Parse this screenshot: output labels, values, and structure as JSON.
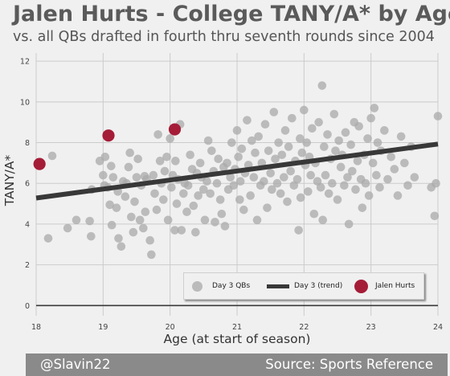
{
  "header": {
    "title": "Jalen Hurts - College TANY/A* by Age",
    "subtitle": "vs. all QBs drafted in fourth thru seventh rounds since 2004"
  },
  "footer": {
    "handle": "@Slavin22",
    "source": "Source: Sports Reference"
  },
  "legend": {
    "day3": "Day 3 QBs",
    "trend": "Day 3 (trend)",
    "hurts": "Jalen Hurts"
  },
  "colors": {
    "background": "#f0f0f0",
    "grid": "#cbcbcb",
    "scatter": "#a9a9a9",
    "trend": "#383838",
    "highlight": "#a51c37",
    "footer": "#8a8a8a"
  },
  "chart_data": {
    "type": "scatter",
    "xlabel": "Age (at start of season)",
    "ylabel": "TANY/A*",
    "xlim": [
      18,
      24
    ],
    "ylim": [
      -0.5,
      12.4
    ],
    "xticks": [
      18,
      19,
      20,
      21,
      22,
      23,
      24
    ],
    "yticks": [
      0,
      2,
      4,
      6,
      8,
      10,
      12
    ],
    "grid": true,
    "legend_position": "bottom-right",
    "series": [
      {
        "name": "Day 3 QBs",
        "color": "#a9a9a9",
        "points": [
          [
            18.18,
            3.3
          ],
          [
            18.24,
            7.35
          ],
          [
            18.47,
            3.8
          ],
          [
            18.6,
            4.2
          ],
          [
            18.8,
            4.15
          ],
          [
            18.82,
            3.4
          ],
          [
            18.83,
            5.7
          ],
          [
            18.95,
            7.1
          ],
          [
            19.0,
            6.4
          ],
          [
            19.02,
            5.9
          ],
          [
            19.03,
            7.3
          ],
          [
            19.07,
            5.8
          ],
          [
            19.1,
            4.95
          ],
          [
            19.12,
            6.85
          ],
          [
            19.13,
            3.95
          ],
          [
            19.15,
            6.3
          ],
          [
            19.2,
            4.8
          ],
          [
            19.22,
            5.6
          ],
          [
            19.23,
            3.3
          ],
          [
            19.27,
            2.9
          ],
          [
            19.3,
            6.1
          ],
          [
            19.33,
            5.35
          ],
          [
            19.35,
            6.0
          ],
          [
            19.38,
            6.8
          ],
          [
            19.4,
            7.5
          ],
          [
            19.42,
            4.35
          ],
          [
            19.45,
            3.6
          ],
          [
            19.47,
            5.1
          ],
          [
            19.5,
            6.3
          ],
          [
            19.52,
            7.2
          ],
          [
            19.55,
            4.2
          ],
          [
            19.57,
            5.9
          ],
          [
            19.6,
            3.8
          ],
          [
            19.62,
            6.35
          ],
          [
            19.63,
            4.6
          ],
          [
            19.65,
            6.2
          ],
          [
            19.7,
            3.2
          ],
          [
            19.72,
            2.5
          ],
          [
            19.75,
            6.4
          ],
          [
            19.77,
            5.5
          ],
          [
            19.8,
            4.7
          ],
          [
            19.82,
            8.4
          ],
          [
            19.85,
            7.1
          ],
          [
            19.87,
            6.0
          ],
          [
            19.9,
            5.2
          ],
          [
            19.92,
            6.6
          ],
          [
            19.95,
            7.3
          ],
          [
            19.97,
            4.2
          ],
          [
            20.0,
            8.2
          ],
          [
            20.02,
            5.8
          ],
          [
            20.04,
            6.4
          ],
          [
            20.07,
            3.7
          ],
          [
            20.08,
            7.1
          ],
          [
            20.1,
            5.0
          ],
          [
            20.12,
            6.2
          ],
          [
            20.15,
            8.9
          ],
          [
            20.17,
            3.7
          ],
          [
            20.2,
            5.5
          ],
          [
            20.22,
            6.0
          ],
          [
            20.25,
            4.6
          ],
          [
            20.27,
            5.9
          ],
          [
            20.3,
            7.4
          ],
          [
            20.33,
            6.7
          ],
          [
            20.35,
            4.9
          ],
          [
            20.38,
            3.6
          ],
          [
            20.4,
            6.5
          ],
          [
            20.42,
            5.4
          ],
          [
            20.45,
            7.0
          ],
          [
            20.47,
            6.3
          ],
          [
            20.5,
            5.7
          ],
          [
            20.52,
            4.2
          ],
          [
            20.55,
            6.1
          ],
          [
            20.57,
            8.1
          ],
          [
            20.6,
            5.5
          ],
          [
            20.62,
            7.6
          ],
          [
            20.65,
            6.6
          ],
          [
            20.67,
            4.1
          ],
          [
            20.7,
            6.0
          ],
          [
            20.72,
            7.2
          ],
          [
            20.75,
            5.2
          ],
          [
            20.77,
            4.5
          ],
          [
            20.8,
            6.8
          ],
          [
            20.82,
            3.9
          ],
          [
            20.85,
            7.0
          ],
          [
            20.87,
            5.7
          ],
          [
            20.9,
            6.3
          ],
          [
            20.92,
            8.0
          ],
          [
            20.95,
            5.9
          ],
          [
            20.97,
            6.7
          ],
          [
            21.0,
            8.6
          ],
          [
            21.02,
            7.3
          ],
          [
            21.04,
            5.2
          ],
          [
            21.05,
            6.1
          ],
          [
            21.07,
            7.7
          ],
          [
            21.1,
            4.7
          ],
          [
            21.12,
            6.5
          ],
          [
            21.15,
            9.1
          ],
          [
            21.17,
            6.9
          ],
          [
            21.2,
            5.4
          ],
          [
            21.22,
            8.1
          ],
          [
            21.25,
            6.3
          ],
          [
            21.27,
            7.5
          ],
          [
            21.3,
            4.2
          ],
          [
            21.32,
            8.3
          ],
          [
            21.35,
            5.9
          ],
          [
            21.37,
            7.0
          ],
          [
            21.4,
            6.1
          ],
          [
            21.42,
            8.9
          ],
          [
            21.45,
            4.8
          ],
          [
            21.47,
            7.6
          ],
          [
            21.5,
            6.5
          ],
          [
            21.52,
            5.7
          ],
          [
            21.55,
            9.5
          ],
          [
            21.57,
            7.2
          ],
          [
            21.6,
            6.0
          ],
          [
            21.62,
            8.0
          ],
          [
            21.65,
            5.5
          ],
          [
            21.67,
            7.4
          ],
          [
            21.7,
            6.3
          ],
          [
            21.72,
            8.6
          ],
          [
            21.75,
            5.1
          ],
          [
            21.77,
            7.8
          ],
          [
            21.8,
            6.6
          ],
          [
            21.82,
            9.2
          ],
          [
            21.85,
            5.9
          ],
          [
            21.87,
            7.1
          ],
          [
            21.9,
            6.2
          ],
          [
            21.92,
            3.7
          ],
          [
            21.94,
            8.2
          ],
          [
            21.95,
            5.3
          ],
          [
            21.97,
            7.5
          ],
          [
            22.0,
            9.6
          ],
          [
            22.02,
            6.9
          ],
          [
            22.04,
            8.0
          ],
          [
            22.06,
            5.6
          ],
          [
            22.08,
            7.3
          ],
          [
            22.1,
            6.4
          ],
          [
            22.12,
            8.7
          ],
          [
            22.15,
            4.5
          ],
          [
            22.17,
            7.0
          ],
          [
            22.2,
            6.1
          ],
          [
            22.22,
            9.0
          ],
          [
            22.25,
            5.8
          ],
          [
            22.27,
            10.8
          ],
          [
            22.28,
            4.2
          ],
          [
            22.3,
            7.8
          ],
          [
            22.32,
            6.4
          ],
          [
            22.35,
            8.4
          ],
          [
            22.37,
            5.5
          ],
          [
            22.4,
            7.2
          ],
          [
            22.42,
            6.0
          ],
          [
            22.45,
            9.4
          ],
          [
            22.47,
            7.6
          ],
          [
            22.5,
            5.2
          ],
          [
            22.52,
            8.1
          ],
          [
            22.55,
            6.8
          ],
          [
            22.57,
            7.4
          ],
          [
            22.6,
            5.9
          ],
          [
            22.62,
            8.5
          ],
          [
            22.65,
            6.3
          ],
          [
            22.67,
            4.0
          ],
          [
            22.7,
            7.9
          ],
          [
            22.72,
            6.6
          ],
          [
            22.75,
            9.0
          ],
          [
            22.77,
            5.7
          ],
          [
            22.8,
            7.1
          ],
          [
            22.82,
            8.8
          ],
          [
            22.85,
            6.2
          ],
          [
            22.87,
            4.8
          ],
          [
            22.9,
            7.4
          ],
          [
            22.92,
            6.0
          ],
          [
            22.95,
            8.2
          ],
          [
            22.97,
            5.4
          ],
          [
            23.0,
            9.2
          ],
          [
            23.03,
            7.0
          ],
          [
            23.05,
            9.7
          ],
          [
            23.08,
            6.4
          ],
          [
            23.1,
            8.0
          ],
          [
            23.13,
            5.8
          ],
          [
            23.15,
            7.6
          ],
          [
            23.2,
            8.6
          ],
          [
            23.25,
            6.2
          ],
          [
            23.3,
            7.3
          ],
          [
            23.35,
            6.7
          ],
          [
            23.4,
            5.4
          ],
          [
            23.45,
            8.3
          ],
          [
            23.5,
            7.0
          ],
          [
            23.55,
            5.9
          ],
          [
            23.6,
            7.8
          ],
          [
            23.65,
            6.3
          ],
          [
            23.9,
            5.8
          ],
          [
            23.95,
            4.4
          ],
          [
            23.97,
            6.0
          ],
          [
            24.0,
            9.3
          ]
        ]
      },
      {
        "name": "Jalen Hurts",
        "color": "#a51c37",
        "points": [
          [
            18.05,
            6.95
          ],
          [
            19.08,
            8.35
          ],
          [
            20.07,
            8.65
          ]
        ]
      }
    ],
    "trend": {
      "name": "Day 3 (trend)",
      "color": "#383838",
      "from": [
        18,
        5.28
      ],
      "to": [
        24,
        7.93
      ]
    }
  }
}
